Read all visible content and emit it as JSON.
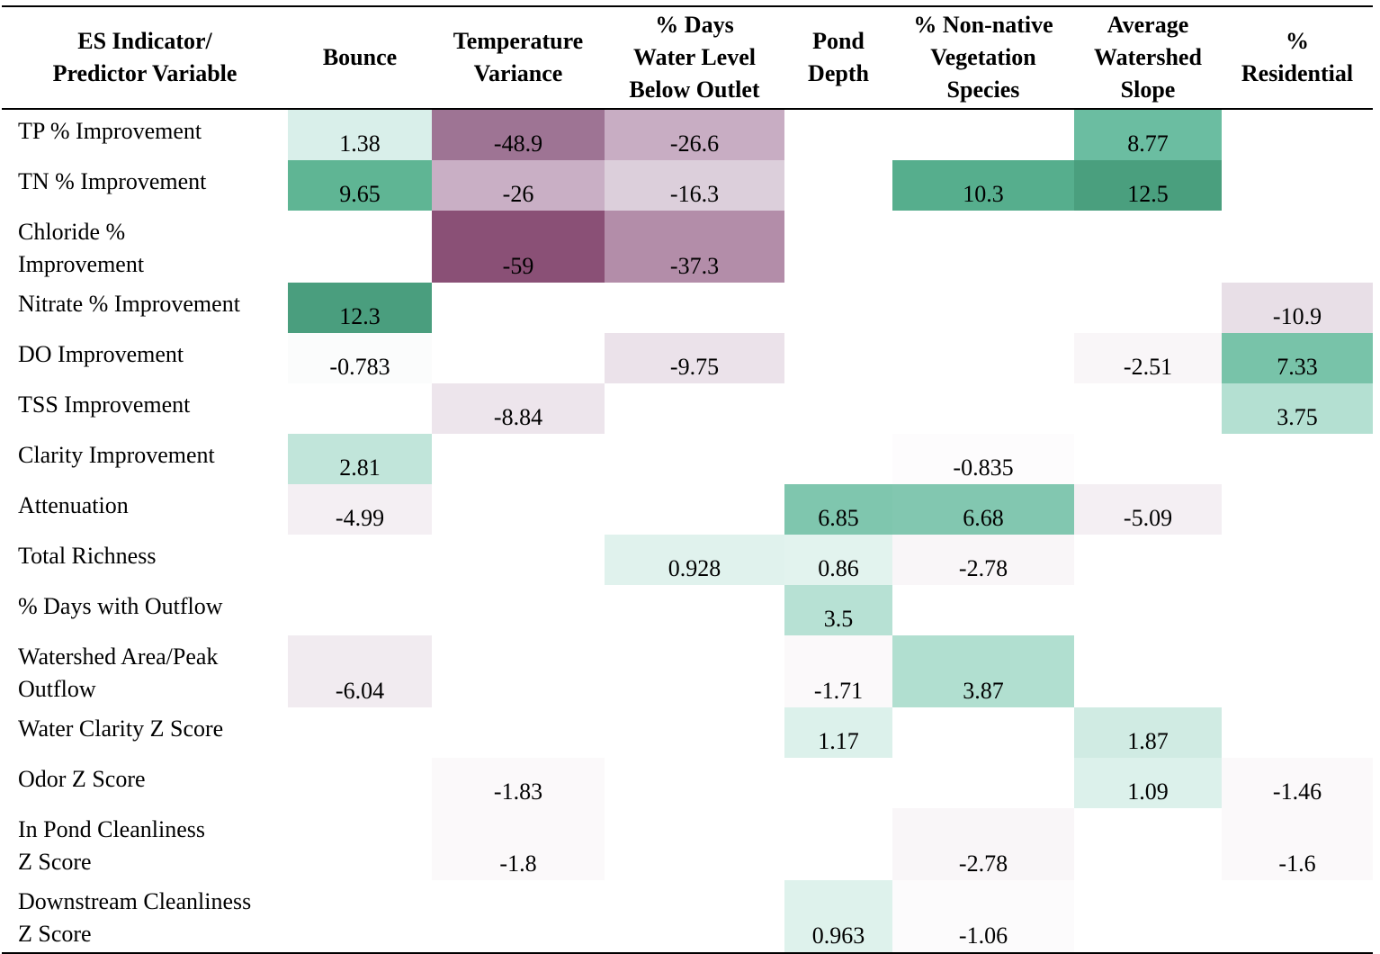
{
  "columns": [
    "ES Indicator/\nPredictor Variable",
    "Bounce",
    "Temperature\nVariance",
    "% Days\nWater Level\nBelow Outlet",
    "Pond\nDepth",
    "% Non-native\nVegetation\nSpecies",
    "Average\nWatershed\nSlope",
    "%\nResidential"
  ],
  "rows": [
    {
      "label": "TP % Improvement",
      "tall": false,
      "cells": [
        {
          "v": "1.38",
          "bg": "#d9efea"
        },
        {
          "v": "-48.9",
          "bg": "#9e7494"
        },
        {
          "v": "-26.6",
          "bg": "#c8adc3"
        },
        {
          "v": "",
          "bg": ""
        },
        {
          "v": "",
          "bg": ""
        },
        {
          "v": "8.77",
          "bg": "#6bbda1"
        },
        {
          "v": "",
          "bg": ""
        }
      ]
    },
    {
      "label": "TN % Improvement",
      "tall": false,
      "cells": [
        {
          "v": "9.65",
          "bg": "#5fb594"
        },
        {
          "v": "-26",
          "bg": "#c9afc5"
        },
        {
          "v": "-16.3",
          "bg": "#dccfdb"
        },
        {
          "v": "",
          "bg": ""
        },
        {
          "v": "10.3",
          "bg": "#56ae8d"
        },
        {
          "v": "12.5",
          "bg": "#4a9f7e"
        },
        {
          "v": "",
          "bg": ""
        }
      ]
    },
    {
      "label": "Chloride %\nImprovement",
      "tall": true,
      "cells": [
        {
          "v": "",
          "bg": ""
        },
        {
          "v": "-59",
          "bg": "#8a5076"
        },
        {
          "v": "-37.3",
          "bg": "#b38da9"
        },
        {
          "v": "",
          "bg": ""
        },
        {
          "v": "",
          "bg": ""
        },
        {
          "v": "",
          "bg": ""
        },
        {
          "v": "",
          "bg": ""
        }
      ]
    },
    {
      "label": "Nitrate % Improvement",
      "tall": false,
      "cells": [
        {
          "v": "12.3",
          "bg": "#4a9e7e"
        },
        {
          "v": "",
          "bg": ""
        },
        {
          "v": "",
          "bg": ""
        },
        {
          "v": "",
          "bg": ""
        },
        {
          "v": "",
          "bg": ""
        },
        {
          "v": "",
          "bg": ""
        },
        {
          "v": "-10.9",
          "bg": "#e8dfe7"
        }
      ]
    },
    {
      "label": "DO Improvement",
      "tall": false,
      "cells": [
        {
          "v": "-0.783",
          "bg": "#fbfcfc"
        },
        {
          "v": "",
          "bg": ""
        },
        {
          "v": "-9.75",
          "bg": "#ebe2ea"
        },
        {
          "v": "",
          "bg": ""
        },
        {
          "v": "",
          "bg": ""
        },
        {
          "v": "-2.51",
          "bg": "#f9f6f8"
        },
        {
          "v": "7.33",
          "bg": "#78c3a9"
        }
      ]
    },
    {
      "label": "TSS Improvement",
      "tall": false,
      "cells": [
        {
          "v": "",
          "bg": ""
        },
        {
          "v": "-8.84",
          "bg": "#ede5ec"
        },
        {
          "v": "",
          "bg": ""
        },
        {
          "v": "",
          "bg": ""
        },
        {
          "v": "",
          "bg": ""
        },
        {
          "v": "",
          "bg": ""
        },
        {
          "v": "3.75",
          "bg": "#b4e0d2"
        }
      ]
    },
    {
      "label": "Clarity Improvement",
      "tall": false,
      "cells": [
        {
          "v": "2.81",
          "bg": "#c1e5da"
        },
        {
          "v": "",
          "bg": ""
        },
        {
          "v": "",
          "bg": ""
        },
        {
          "v": "",
          "bg": ""
        },
        {
          "v": "-0.835",
          "bg": "#fdfcfd"
        },
        {
          "v": "",
          "bg": ""
        },
        {
          "v": "",
          "bg": ""
        }
      ]
    },
    {
      "label": "Attenuation",
      "tall": false,
      "cells": [
        {
          "v": "-4.99",
          "bg": "#f4eff3"
        },
        {
          "v": "",
          "bg": ""
        },
        {
          "v": "",
          "bg": ""
        },
        {
          "v": "6.85",
          "bg": "#7fc6ae"
        },
        {
          "v": "6.68",
          "bg": "#82c7b0"
        },
        {
          "v": "-5.09",
          "bg": "#f4eff3"
        },
        {
          "v": "",
          "bg": ""
        }
      ]
    },
    {
      "label": "Total Richness",
      "tall": false,
      "cells": [
        {
          "v": "",
          "bg": ""
        },
        {
          "v": "",
          "bg": ""
        },
        {
          "v": "0.928",
          "bg": "#e0f2ed"
        },
        {
          "v": "0.86",
          "bg": "#e2f3ee"
        },
        {
          "v": "-2.78",
          "bg": "#f9f6f8"
        },
        {
          "v": "",
          "bg": ""
        },
        {
          "v": "",
          "bg": ""
        }
      ]
    },
    {
      "label": "% Days with Outflow",
      "tall": false,
      "cells": [
        {
          "v": "",
          "bg": ""
        },
        {
          "v": "",
          "bg": ""
        },
        {
          "v": "",
          "bg": ""
        },
        {
          "v": "3.5",
          "bg": "#b7e1d4"
        },
        {
          "v": "",
          "bg": ""
        },
        {
          "v": "",
          "bg": ""
        },
        {
          "v": "",
          "bg": ""
        }
      ]
    },
    {
      "label": "Watershed Area/Peak\nOutflow",
      "tall": true,
      "cells": [
        {
          "v": "-6.04",
          "bg": "#f1ebf0"
        },
        {
          "v": "",
          "bg": ""
        },
        {
          "v": "",
          "bg": ""
        },
        {
          "v": "-1.71",
          "bg": "#fbf9fa"
        },
        {
          "v": "3.87",
          "bg": "#b1dfd0"
        },
        {
          "v": "",
          "bg": ""
        },
        {
          "v": "",
          "bg": ""
        }
      ]
    },
    {
      "label": "Water Clarity Z Score",
      "tall": false,
      "cells": [
        {
          "v": "",
          "bg": ""
        },
        {
          "v": "",
          "bg": ""
        },
        {
          "v": "",
          "bg": ""
        },
        {
          "v": "1.17",
          "bg": "#dcf1eb"
        },
        {
          "v": "",
          "bg": ""
        },
        {
          "v": "1.87",
          "bg": "#d0ebe3"
        },
        {
          "v": "",
          "bg": ""
        }
      ]
    },
    {
      "label": "Odor Z Score",
      "tall": false,
      "cells": [
        {
          "v": "",
          "bg": ""
        },
        {
          "v": "-1.83",
          "bg": "#fbf9fa"
        },
        {
          "v": "",
          "bg": ""
        },
        {
          "v": "",
          "bg": ""
        },
        {
          "v": "",
          "bg": ""
        },
        {
          "v": "1.09",
          "bg": "#dcf1eb"
        },
        {
          "v": "-1.46",
          "bg": "#fbf9fa"
        }
      ]
    },
    {
      "label": "In Pond Cleanliness\nZ Score",
      "tall": true,
      "cells": [
        {
          "v": "",
          "bg": ""
        },
        {
          "v": "-1.8",
          "bg": "#fbf9fa"
        },
        {
          "v": "",
          "bg": ""
        },
        {
          "v": "",
          "bg": ""
        },
        {
          "v": "-2.78",
          "bg": "#f9f6f8"
        },
        {
          "v": "",
          "bg": ""
        },
        {
          "v": "-1.6",
          "bg": "#fbf9fa"
        }
      ]
    },
    {
      "label": "Downstream Cleanliness\nZ Score",
      "tall": true,
      "cells": [
        {
          "v": "",
          "bg": ""
        },
        {
          "v": "",
          "bg": ""
        },
        {
          "v": "",
          "bg": ""
        },
        {
          "v": "0.963",
          "bg": "#def2ec"
        },
        {
          "v": "-1.06",
          "bg": "#fcfbfc"
        },
        {
          "v": "",
          "bg": ""
        },
        {
          "v": "",
          "bg": ""
        }
      ]
    }
  ]
}
